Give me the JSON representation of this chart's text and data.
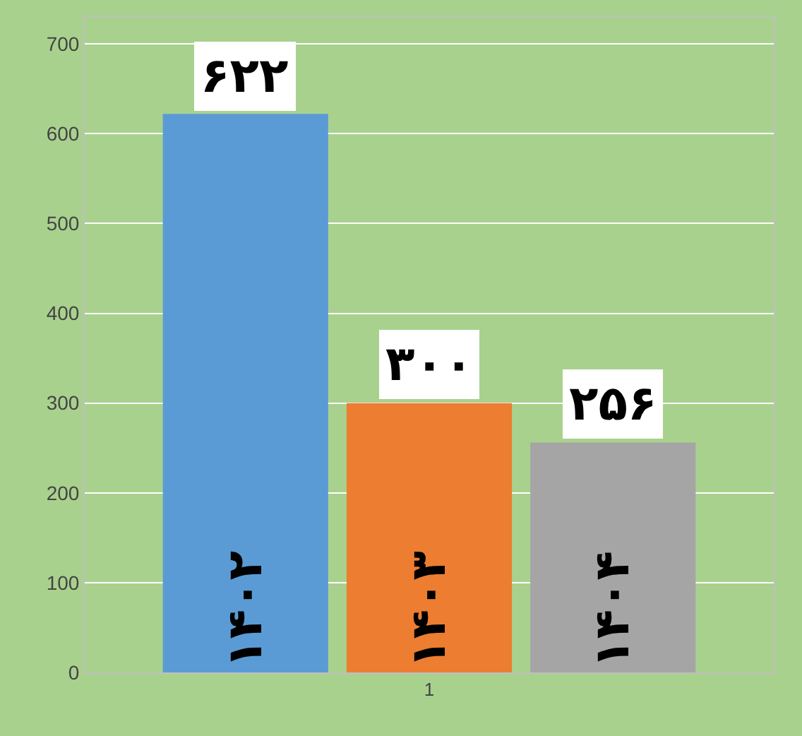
{
  "chart_data": {
    "type": "bar",
    "categories": [
      "1"
    ],
    "series": [
      {
        "name": "۱۴۰۲",
        "color": "#5b9bd5",
        "values": [
          622
        ],
        "value_labels": [
          "۶۲۲"
        ]
      },
      {
        "name": "۱۴۰۳",
        "color": "#ed7d31",
        "values": [
          300
        ],
        "value_labels": [
          "۳۰۰"
        ]
      },
      {
        "name": "۱۴۰۴",
        "color": "#a5a5a5",
        "values": [
          256
        ],
        "value_labels": [
          "۲۵۶"
        ]
      }
    ],
    "ylim": [
      0,
      730
    ],
    "yticks": [
      0,
      100,
      200,
      300,
      400,
      500,
      600,
      700
    ],
    "grid": "y"
  }
}
